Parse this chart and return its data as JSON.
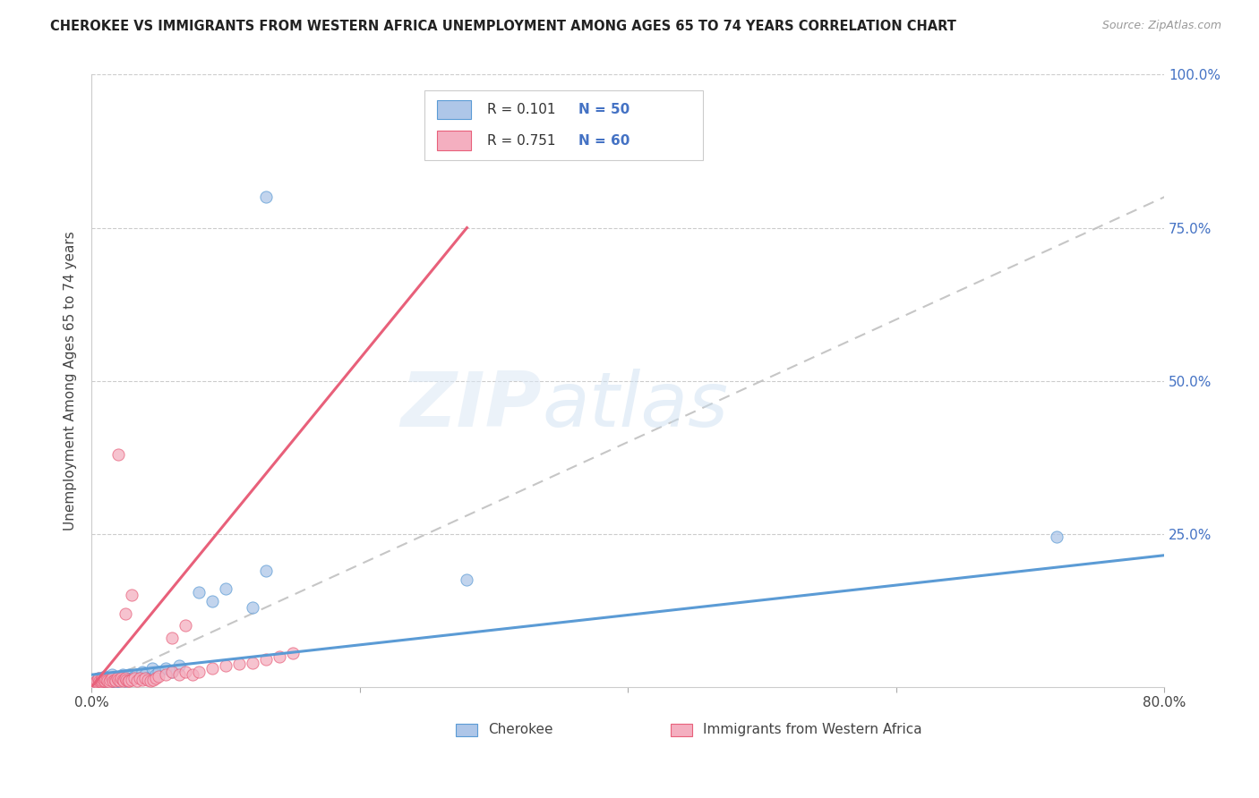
{
  "title": "CHEROKEE VS IMMIGRANTS FROM WESTERN AFRICA UNEMPLOYMENT AMONG AGES 65 TO 74 YEARS CORRELATION CHART",
  "source": "Source: ZipAtlas.com",
  "ylabel": "Unemployment Among Ages 65 to 74 years",
  "xlim": [
    0.0,
    0.8
  ],
  "ylim": [
    0.0,
    1.0
  ],
  "R1": "0.101",
  "N1": "50",
  "R2": "0.751",
  "N2": "60",
  "legend_label1": "Cherokee",
  "legend_label2": "Immigrants from Western Africa",
  "color_cherokee_fill": "#aec6e8",
  "color_cherokee_edge": "#5b9bd5",
  "color_immigrants_fill": "#f4afc0",
  "color_immigrants_edge": "#e8607a",
  "color_diag": "#c0c0c0",
  "watermark_zip": "ZIP",
  "watermark_atlas": "atlas",
  "cherokee_x": [
    0.002,
    0.003,
    0.004,
    0.005,
    0.005,
    0.006,
    0.007,
    0.007,
    0.008,
    0.008,
    0.01,
    0.01,
    0.011,
    0.012,
    0.013,
    0.014,
    0.015,
    0.015,
    0.016,
    0.017,
    0.018,
    0.02,
    0.021,
    0.022,
    0.023,
    0.025,
    0.026,
    0.027,
    0.028,
    0.03,
    0.032,
    0.034,
    0.036,
    0.038,
    0.04,
    0.042,
    0.045,
    0.048,
    0.05,
    0.055,
    0.06,
    0.065,
    0.08,
    0.09,
    0.1,
    0.12,
    0.13,
    0.28,
    0.72,
    0.13
  ],
  "cherokee_y": [
    0.005,
    0.008,
    0.01,
    0.012,
    0.015,
    0.01,
    0.008,
    0.012,
    0.01,
    0.015,
    0.01,
    0.018,
    0.012,
    0.015,
    0.01,
    0.008,
    0.012,
    0.02,
    0.015,
    0.01,
    0.008,
    0.01,
    0.015,
    0.012,
    0.02,
    0.01,
    0.015,
    0.012,
    0.02,
    0.015,
    0.018,
    0.02,
    0.015,
    0.025,
    0.02,
    0.015,
    0.03,
    0.02,
    0.025,
    0.03,
    0.025,
    0.035,
    0.155,
    0.14,
    0.16,
    0.13,
    0.19,
    0.175,
    0.245,
    0.8
  ],
  "immigrants_x": [
    0.002,
    0.003,
    0.004,
    0.005,
    0.005,
    0.006,
    0.007,
    0.007,
    0.008,
    0.008,
    0.009,
    0.01,
    0.01,
    0.011,
    0.012,
    0.013,
    0.014,
    0.015,
    0.016,
    0.017,
    0.018,
    0.019,
    0.02,
    0.021,
    0.022,
    0.023,
    0.024,
    0.025,
    0.026,
    0.027,
    0.028,
    0.03,
    0.032,
    0.034,
    0.036,
    0.038,
    0.04,
    0.042,
    0.044,
    0.046,
    0.048,
    0.05,
    0.055,
    0.06,
    0.065,
    0.07,
    0.075,
    0.08,
    0.09,
    0.1,
    0.11,
    0.12,
    0.13,
    0.14,
    0.15,
    0.02,
    0.025,
    0.03,
    0.06,
    0.07
  ],
  "immigrants_y": [
    0.005,
    0.008,
    0.01,
    0.012,
    0.015,
    0.01,
    0.008,
    0.012,
    0.01,
    0.015,
    0.01,
    0.01,
    0.015,
    0.012,
    0.01,
    0.008,
    0.012,
    0.015,
    0.01,
    0.012,
    0.01,
    0.015,
    0.012,
    0.01,
    0.015,
    0.012,
    0.01,
    0.015,
    0.012,
    0.01,
    0.01,
    0.012,
    0.015,
    0.01,
    0.015,
    0.012,
    0.015,
    0.012,
    0.01,
    0.012,
    0.015,
    0.018,
    0.02,
    0.025,
    0.02,
    0.025,
    0.02,
    0.025,
    0.03,
    0.035,
    0.038,
    0.04,
    0.045,
    0.05,
    0.055,
    0.38,
    0.12,
    0.15,
    0.08,
    0.1
  ],
  "cherokee_line_x": [
    0.0,
    0.8
  ],
  "cherokee_line_y": [
    0.02,
    0.215
  ],
  "immigrants_line_x": [
    0.0,
    0.28
  ],
  "immigrants_line_y": [
    0.0,
    0.75
  ]
}
